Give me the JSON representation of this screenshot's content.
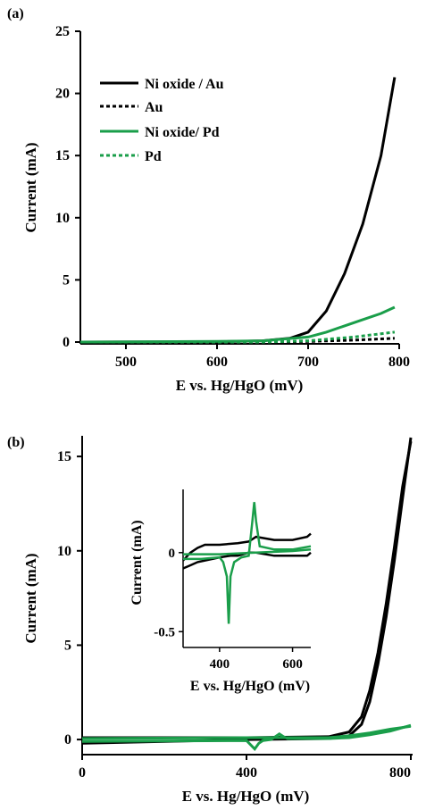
{
  "figure": {
    "title": ""
  },
  "chart_data": [
    {
      "panel": "(a)",
      "type": "line",
      "xlabel": "E vs. Hg/HgO (mV)",
      "ylabel": "Current (mA)",
      "xlim": [
        450,
        800
      ],
      "ylim": [
        0,
        25
      ],
      "xticks": [
        "500",
        "600",
        "700",
        "800"
      ],
      "yticks": [
        "0",
        "5",
        "10",
        "15",
        "20",
        "25"
      ],
      "legend_position": "top-left",
      "series": [
        {
          "name": "Ni oxide / Au",
          "color": "#000000",
          "dash": "solid",
          "x": [
            450,
            600,
            650,
            680,
            700,
            720,
            740,
            760,
            780,
            795
          ],
          "y": [
            0.0,
            0.02,
            0.1,
            0.3,
            0.8,
            2.5,
            5.5,
            9.5,
            15.0,
            21.3
          ]
        },
        {
          "name": "Au",
          "color": "#000000",
          "dash": "dotted",
          "x": [
            450,
            650,
            700,
            750,
            795
          ],
          "y": [
            0.0,
            0.0,
            0.05,
            0.15,
            0.3
          ]
        },
        {
          "name": "Ni oxide/ Pd",
          "color": "#1a9e4a",
          "dash": "solid",
          "x": [
            450,
            600,
            650,
            700,
            720,
            740,
            760,
            780,
            795
          ],
          "y": [
            0.0,
            0.05,
            0.1,
            0.4,
            0.8,
            1.3,
            1.8,
            2.3,
            2.8
          ]
        },
        {
          "name": "Pd",
          "color": "#1a9e4a",
          "dash": "dotted",
          "x": [
            450,
            650,
            700,
            750,
            795
          ],
          "y": [
            0.0,
            0.0,
            0.1,
            0.4,
            0.8
          ]
        }
      ]
    },
    {
      "panel": "(b)",
      "type": "line",
      "xlabel": "E vs. Hg/HgO (mV)",
      "ylabel": "Current (mA)",
      "xlim": [
        0,
        800
      ],
      "ylim": [
        -0.8,
        16
      ],
      "xticks": [
        "0",
        "400",
        "800"
      ],
      "yticks": [
        "0",
        "5",
        "10",
        "15"
      ],
      "series": [
        {
          "color": "#000000",
          "x": [
            0,
            200,
            400,
            600,
            650,
            680,
            700,
            720,
            740,
            760,
            780,
            800
          ],
          "y": [
            -0.2,
            -0.1,
            0.0,
            0.05,
            0.2,
            0.8,
            2.0,
            4.0,
            6.5,
            9.5,
            12.8,
            16.0
          ]
        },
        {
          "color": "#000000",
          "x": [
            0,
            200,
            400,
            600,
            650,
            680,
            700,
            720,
            740,
            760,
            780,
            800
          ],
          "y": [
            0.1,
            0.1,
            0.1,
            0.15,
            0.4,
            1.2,
            2.6,
            4.6,
            7.2,
            10.2,
            13.4,
            15.8
          ]
        },
        {
          "color": "#1a9e4a",
          "x": [
            0,
            400,
            420,
            430,
            440,
            460,
            480,
            490,
            500,
            600,
            650,
            700,
            750,
            800
          ],
          "y": [
            -0.1,
            -0.05,
            -0.5,
            -0.2,
            -0.05,
            0.0,
            0.3,
            0.15,
            0.05,
            0.05,
            0.1,
            0.25,
            0.45,
            0.75
          ]
        },
        {
          "color": "#1a9e4a",
          "x": [
            0,
            400,
            600,
            650,
            700,
            750,
            800
          ],
          "y": [
            0.05,
            0.1,
            0.1,
            0.2,
            0.35,
            0.55,
            0.7
          ]
        }
      ],
      "inset": {
        "xlabel": "E vs. Hg/HgO (mV)",
        "ylabel": "Current (mA)",
        "xlim": [
          300,
          650
        ],
        "ylim": [
          -0.6,
          0.4
        ],
        "xticks": [
          "400",
          "600"
        ],
        "yticks": [
          "0",
          "-0.5"
        ],
        "series": [
          {
            "color": "#000000",
            "x": [
              300,
              320,
              340,
              360,
              380,
              400,
              450,
              480,
              500,
              550,
              600,
              640,
              650
            ],
            "y": [
              -0.05,
              0.0,
              0.03,
              0.05,
              0.05,
              0.05,
              0.06,
              0.07,
              0.1,
              0.08,
              0.08,
              0.1,
              0.12
            ]
          },
          {
            "color": "#000000",
            "x": [
              300,
              320,
              340,
              360,
              400,
              430,
              450,
              480,
              500,
              550,
              600,
              640,
              650
            ],
            "y": [
              -0.1,
              -0.08,
              -0.06,
              -0.05,
              -0.03,
              -0.02,
              -0.02,
              0.0,
              0.0,
              -0.02,
              -0.02,
              -0.02,
              0.0
            ]
          },
          {
            "color": "#1a9e4a",
            "x": [
              300,
              350,
              400,
              410,
              420,
              425,
              430,
              440,
              460,
              480,
              490,
              495,
              500,
              510,
              550,
              600,
              650
            ],
            "y": [
              -0.04,
              -0.04,
              -0.03,
              -0.06,
              -0.15,
              -0.45,
              -0.15,
              -0.06,
              -0.03,
              -0.02,
              0.2,
              0.32,
              0.2,
              0.04,
              0.02,
              0.02,
              0.04
            ]
          },
          {
            "color": "#1a9e4a",
            "x": [
              300,
              400,
              500,
              600,
              650
            ],
            "y": [
              -0.01,
              -0.01,
              0.0,
              0.01,
              0.02
            ]
          }
        ]
      }
    }
  ]
}
